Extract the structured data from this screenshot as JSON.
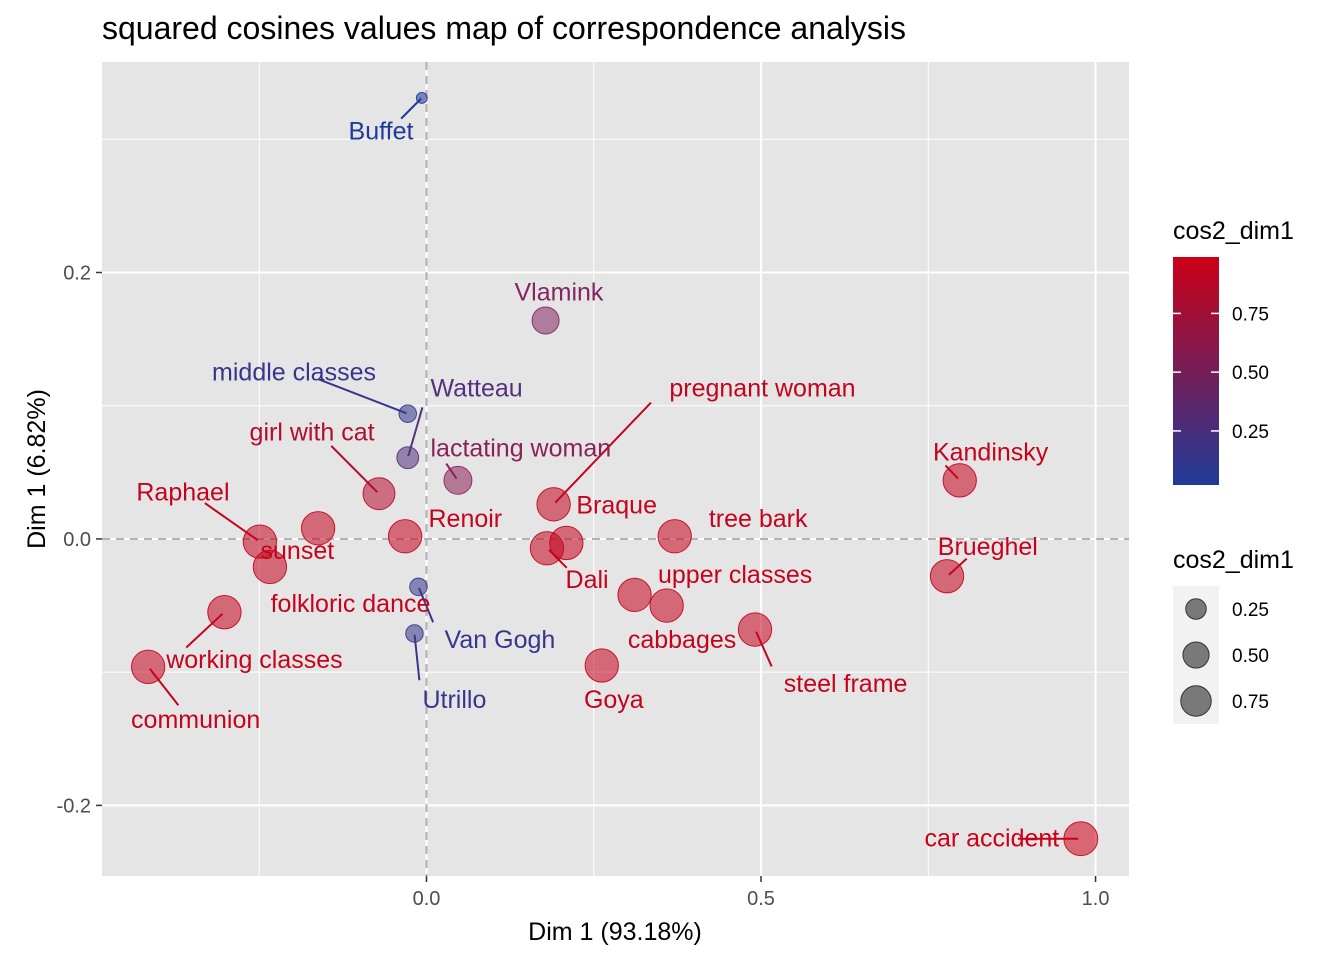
{
  "chart_data": {
    "type": "scatter",
    "title": "squared cosines values map of correspondence analysis",
    "xlabel": "Dim 1 (93.18%)",
    "ylabel": "Dim 1 (6.82%)",
    "xlim": [
      -0.485,
      1.05
    ],
    "ylim": [
      -0.253,
      0.358
    ],
    "x_ticks": [
      0.0,
      0.5,
      1.0
    ],
    "x_tick_labels": [
      "0.0",
      "0.5",
      "1.0"
    ],
    "y_ticks": [
      -0.2,
      0.0,
      0.2
    ],
    "y_tick_labels": [
      "-0.2",
      "0.0",
      "0.2"
    ],
    "grid": true,
    "reference_lines": {
      "x": 0,
      "y": 0,
      "style": "dashed"
    },
    "color_scale": {
      "low": "#1f3b99",
      "high": "#cc0016"
    },
    "point_opacity": 0.55,
    "legend": {
      "placement": "right",
      "color": {
        "title": "cos2_dim1",
        "ticks": [
          "0.25",
          "0.50",
          "0.75"
        ],
        "tick_values": [
          0.25,
          0.5,
          0.75
        ],
        "range": [
          0.02,
          0.99
        ]
      },
      "size": {
        "title": "cos2_dim1",
        "labels": [
          "0.25",
          "0.50",
          "0.75"
        ],
        "values": [
          0.25,
          0.5,
          0.75
        ]
      }
    },
    "points": [
      {
        "name": "Buffet",
        "x": -0.007,
        "y": 0.331,
        "cos2": 0.02,
        "lx": -0.068,
        "ly": 0.306,
        "anchor": "middle"
      },
      {
        "name": "Vlamink",
        "x": 0.178,
        "y": 0.164,
        "cos2": 0.55,
        "lx": 0.198,
        "ly": 0.185,
        "anchor": "middle"
      },
      {
        "name": "middle classes",
        "x": -0.028,
        "y": 0.094,
        "cos2": 0.15,
        "lx": -0.198,
        "ly": 0.125,
        "anchor": "middle"
      },
      {
        "name": "Watteau",
        "x": -0.028,
        "y": 0.061,
        "cos2": 0.3,
        "lx": 0.006,
        "ly": 0.113,
        "anchor": "start"
      },
      {
        "name": "pregnant woman",
        "x": 0.19,
        "y": 0.026,
        "cos2": 0.95,
        "lx": 0.363,
        "ly": 0.113,
        "anchor": "start"
      },
      {
        "name": "girl with cat",
        "x": -0.071,
        "y": 0.034,
        "cos2": 0.85,
        "lx": -0.171,
        "ly": 0.08,
        "anchor": "middle"
      },
      {
        "name": "lactating woman",
        "x": 0.047,
        "y": 0.044,
        "cos2": 0.6,
        "lx": 0.006,
        "ly": 0.068,
        "anchor": "start"
      },
      {
        "name": "Kandinsky",
        "x": 0.797,
        "y": 0.044,
        "cos2": 0.95,
        "lx": 0.757,
        "ly": 0.065,
        "anchor": "start"
      },
      {
        "name": "Raphael",
        "x": -0.249,
        "y": -0.002,
        "cos2": 0.95,
        "lx": -0.364,
        "ly": 0.035,
        "anchor": "middle"
      },
      {
        "name": "sunset",
        "x": -0.162,
        "y": 0.008,
        "cos2": 0.95,
        "lx": -0.193,
        "ly": -0.009,
        "anchor": "middle"
      },
      {
        "name": "Renoir",
        "x": -0.032,
        "y": 0.002,
        "cos2": 0.95,
        "lx": 0.003,
        "ly": 0.015,
        "anchor": "start"
      },
      {
        "name": "Braque",
        "x": 0.209,
        "y": -0.003,
        "cos2": 0.95,
        "lx": 0.224,
        "ly": 0.025,
        "anchor": "start"
      },
      {
        "name": "tree bark",
        "x": 0.371,
        "y": 0.002,
        "cos2": 0.95,
        "lx": 0.422,
        "ly": 0.015,
        "anchor": "start"
      },
      {
        "name": "Dali",
        "x": 0.18,
        "y": -0.007,
        "cos2": 0.95,
        "lx": 0.24,
        "ly": -0.031,
        "anchor": "middle"
      },
      {
        "name": "Brueghel",
        "x": 0.778,
        "y": -0.028,
        "cos2": 0.95,
        "lx": 0.839,
        "ly": -0.006,
        "anchor": "middle"
      },
      {
        "name": "folkloric dance",
        "x": -0.234,
        "y": -0.021,
        "cos2": 0.95,
        "lx": -0.233,
        "ly": -0.049,
        "anchor": "start"
      },
      {
        "name": "upper classes",
        "x": 0.311,
        "y": -0.042,
        "cos2": 0.95,
        "lx": 0.346,
        "ly": -0.027,
        "anchor": "start"
      },
      {
        "name": "cabbages",
        "x": 0.359,
        "y": -0.05,
        "cos2": 0.95,
        "lx": 0.382,
        "ly": -0.076,
        "anchor": "middle"
      },
      {
        "name": "steel frame",
        "x": 0.491,
        "y": -0.068,
        "cos2": 0.95,
        "lx": 0.534,
        "ly": -0.109,
        "anchor": "start"
      },
      {
        "name": "Van Gogh",
        "x": -0.012,
        "y": -0.036,
        "cos2": 0.15,
        "lx": 0.027,
        "ly": -0.076,
        "anchor": "start"
      },
      {
        "name": "Utrillo",
        "x": -0.018,
        "y": -0.071,
        "cos2": 0.15,
        "lx": -0.006,
        "ly": -0.121,
        "anchor": "start"
      },
      {
        "name": "working classes",
        "x": -0.302,
        "y": -0.055,
        "cos2": 0.95,
        "lx": -0.389,
        "ly": -0.091,
        "anchor": "start"
      },
      {
        "name": "Goya",
        "x": 0.262,
        "y": -0.095,
        "cos2": 0.95,
        "lx": 0.28,
        "ly": -0.121,
        "anchor": "middle"
      },
      {
        "name": "communion",
        "x": -0.416,
        "y": -0.096,
        "cos2": 0.95,
        "lx": -0.345,
        "ly": -0.136,
        "anchor": "middle"
      },
      {
        "name": "car accident",
        "x": 0.978,
        "y": -0.225,
        "cos2": 0.99,
        "lx": 0.845,
        "ly": -0.225,
        "anchor": "middle"
      }
    ]
  }
}
